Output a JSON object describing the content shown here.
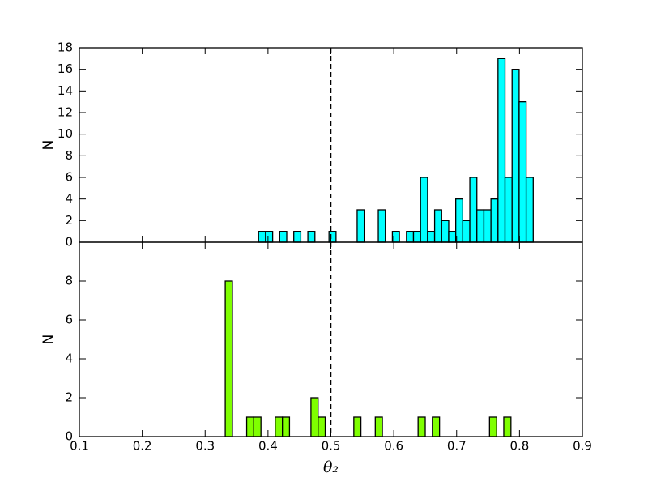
{
  "chart_data": [
    {
      "type": "histogram",
      "ylabel": "N",
      "color": "#00ffff",
      "bins": [
        0.385,
        0.3962,
        0.4074,
        0.4186,
        0.4298,
        0.441,
        0.4522,
        0.4634,
        0.4746,
        0.4858,
        0.497,
        0.5082,
        0.5194,
        0.5306,
        0.5418,
        0.553,
        0.5642,
        0.5754,
        0.5866,
        0.5978,
        0.609,
        0.6202,
        0.6314,
        0.6426,
        0.6538,
        0.665,
        0.6762,
        0.6874,
        0.6986,
        0.7098,
        0.721,
        0.7322,
        0.7434,
        0.7546,
        0.7658,
        0.777,
        0.7882,
        0.7994,
        0.8106,
        0.8218
      ],
      "values": [
        1,
        1,
        0,
        1,
        0,
        1,
        0,
        1,
        0,
        0,
        1,
        0,
        0,
        0,
        3,
        0,
        0,
        3,
        0,
        1,
        0,
        1,
        1,
        6,
        1,
        3,
        2,
        1,
        4,
        2,
        6,
        3,
        3,
        4,
        17,
        6,
        16,
        13,
        6
      ],
      "ylim": [
        0,
        18
      ],
      "yticks": [
        0,
        2,
        4,
        6,
        8,
        10,
        12,
        14,
        16,
        18
      ],
      "vline": 0.5
    },
    {
      "type": "histogram",
      "ylabel": "N",
      "xlabel": "θ₂",
      "color": "#7fff00",
      "bins": [
        0.332,
        0.3434,
        0.3547,
        0.3661,
        0.3774,
        0.3888,
        0.4002,
        0.4115,
        0.4229,
        0.4342,
        0.4456,
        0.457,
        0.4683,
        0.4797,
        0.491,
        0.5024,
        0.5138,
        0.5251,
        0.5365,
        0.5478,
        0.5592,
        0.5706,
        0.5819,
        0.5933,
        0.6046,
        0.616,
        0.6274,
        0.6387,
        0.6501,
        0.6614,
        0.6728,
        0.6842,
        0.6955,
        0.7069,
        0.7182,
        0.7296,
        0.741,
        0.7523,
        0.7637,
        0.775,
        0.7864
      ],
      "values": [
        8,
        0,
        0,
        1,
        1,
        0,
        0,
        1,
        1,
        0,
        0,
        0,
        2,
        1,
        0,
        0,
        0,
        0,
        1,
        0,
        0,
        1,
        0,
        0,
        0,
        0,
        0,
        1,
        0,
        1,
        0,
        0,
        0,
        0,
        0,
        0,
        0,
        1,
        0,
        1
      ],
      "xlim": [
        0.1,
        0.9
      ],
      "xticks": [
        0.1,
        0.2,
        0.3,
        0.4,
        0.5,
        0.6,
        0.7,
        0.8,
        0.9
      ],
      "ylim": [
        0,
        10
      ],
      "yticks": [
        0,
        2,
        4,
        6,
        8
      ],
      "vline": 0.5
    }
  ]
}
